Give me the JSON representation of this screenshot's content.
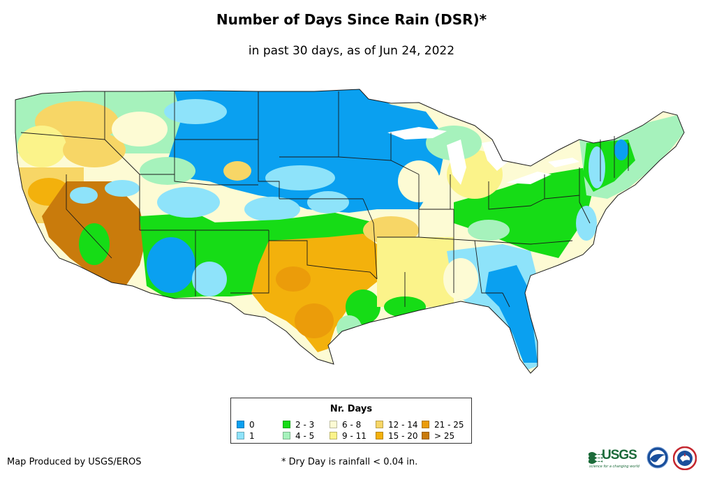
{
  "header": {
    "title": "Number of Days Since Rain (DSR)*",
    "subtitle": "in past 30 days, as of Jun 24, 2022"
  },
  "legend": {
    "title": "Nr. Days",
    "items": [
      {
        "label": "0",
        "color": "#0aa0f0"
      },
      {
        "label": "1",
        "color": "#8ee3fa"
      },
      {
        "label": "2 - 3",
        "color": "#16dc16"
      },
      {
        "label": "4 - 5",
        "color": "#a6f2bc"
      },
      {
        "label": "6 - 8",
        "color": "#fdfbd4"
      },
      {
        "label": "9 - 11",
        "color": "#fbf38a"
      },
      {
        "label": "12 - 14",
        "color": "#f7d666"
      },
      {
        "label": "15 - 20",
        "color": "#f3b10c"
      },
      {
        "label": "21 - 25",
        "color": "#eb9c0a"
      },
      {
        "label": "> 25",
        "color": "#c97b0c"
      }
    ]
  },
  "footer": {
    "credit": "Map Produced by USGS/EROS",
    "note": "* Dry Day is rainfall < 0.04 in."
  },
  "logos": {
    "usgs_text": "USGS",
    "usgs_tagline": "science for a changing world",
    "noaa_icon": "noaa-logo-icon",
    "nws_icon": "nws-logo-icon"
  }
}
